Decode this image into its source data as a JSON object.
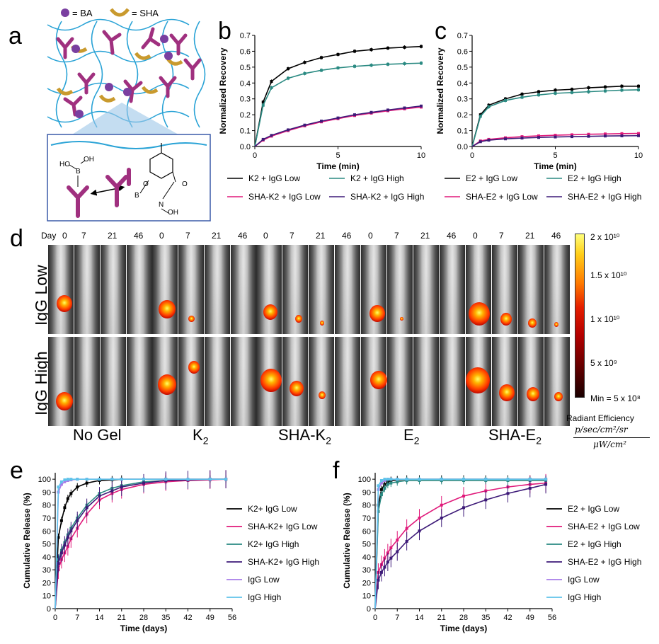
{
  "panel_labels": {
    "a": "a",
    "b": "b",
    "c": "c",
    "d": "d",
    "e": "e",
    "f": "f"
  },
  "panel_a": {
    "legend_ba": "= BA",
    "legend_sha": "= SHA",
    "chem": {
      "ho1": "HO",
      "oh1": "OH",
      "b1": "B",
      "o1": "O",
      "o2": "O",
      "b2": "B",
      "n": "N",
      "oh2": "OH",
      "o3": "O"
    }
  },
  "panel_b": {
    "ylabel": "Normalized Recovery",
    "xlabel": "Time (min)",
    "yticks": [
      "0.0",
      "0.1",
      "0.2",
      "0.3",
      "0.4",
      "0.5",
      "0.6",
      "0.7"
    ],
    "xticks": [
      "0",
      "5",
      "10"
    ],
    "legend": [
      "K2 + IgG Low",
      "K2 + IgG High",
      "SHA-K2 + IgG Low",
      "SHA-K2 + IgG High"
    ]
  },
  "panel_c": {
    "ylabel": "Normalized Recovery",
    "xlabel": "Time (min)",
    "yticks": [
      "0.0",
      "0.1",
      "0.2",
      "0.3",
      "0.4",
      "0.5",
      "0.6",
      "0.7"
    ],
    "xticks": [
      "0",
      "5",
      "10"
    ],
    "legend": [
      "E2 + IgG Low",
      "E2 + IgG High",
      "SHA-E2 + IgG Low",
      "SHA-E2 + IgG High"
    ]
  },
  "panel_d": {
    "day_prefix": "Day",
    "days": [
      "0",
      "7",
      "21",
      "46"
    ],
    "rows": [
      "IgG Low",
      "IgG High"
    ],
    "groups": [
      "No Gel",
      "K2",
      "SHA-K2",
      "E2",
      "SHA-E2"
    ],
    "colorbar": {
      "ticks": [
        "2 x 10¹⁰",
        "1.5 x 10¹⁰",
        "1 x 10¹⁰",
        "5 x 10⁹",
        "Min = 5 x 10⁸"
      ],
      "title": "Radiant Efficiency",
      "unit_num": "p/sec/cm²/sr",
      "unit_den": "μW/cm²"
    }
  },
  "panel_e": {
    "ylabel": "Cumulative Release (%)",
    "xlabel": "Time (days)",
    "yticks": [
      "0",
      "10",
      "20",
      "30",
      "40",
      "50",
      "60",
      "70",
      "80",
      "90",
      "100"
    ],
    "xticks": [
      "0",
      "7",
      "14",
      "21",
      "28",
      "35",
      "42",
      "49",
      "56"
    ],
    "legend": [
      "K2+ IgG Low",
      "SHA-K2+ IgG Low",
      "K2+ IgG High",
      "SHA-K2+ IgG High",
      "IgG Low",
      "IgG High"
    ]
  },
  "panel_f": {
    "ylabel": "Cumulative Release (%)",
    "xlabel": "Time (days)",
    "yticks": [
      "0",
      "10",
      "20",
      "30",
      "40",
      "50",
      "60",
      "70",
      "80",
      "90",
      "100"
    ],
    "xticks": [
      "0",
      "7",
      "14",
      "21",
      "28",
      "35",
      "42",
      "49",
      "56"
    ],
    "legend": [
      "E2 + IgG Low",
      "SHA-E2 + IgG Low",
      "E2 + IgG High",
      "SHA-E2 + IgG High",
      "IgG Low",
      "IgG High"
    ]
  },
  "colors": {
    "black": "#000000",
    "teal": "#2a8a82",
    "pink": "#e0197a",
    "purple": "#3d1a78",
    "lavender": "#a77be8",
    "lightblue": "#5fc3ea",
    "magenta": "#a0307f",
    "gold": "#c99a2e",
    "gelblue": "#2aa3d6"
  },
  "chart_data": [
    {
      "panel": "b",
      "type": "line",
      "xlabel": "Time (min)",
      "ylabel": "Normalized Recovery",
      "xlim": [
        0,
        10
      ],
      "ylim": [
        0,
        0.7
      ],
      "x": [
        0,
        0.5,
        1,
        2,
        3,
        4,
        5,
        6,
        7,
        8,
        9,
        10
      ],
      "series": [
        {
          "name": "K2 + IgG Low",
          "values": [
            0.0,
            0.28,
            0.41,
            0.49,
            0.53,
            0.56,
            0.58,
            0.6,
            0.61,
            0.62,
            0.625,
            0.63
          ]
        },
        {
          "name": "K2 + IgG High",
          "values": [
            0.0,
            0.26,
            0.37,
            0.43,
            0.46,
            0.48,
            0.495,
            0.505,
            0.512,
            0.518,
            0.522,
            0.525
          ]
        },
        {
          "name": "SHA-K2 + IgG Low",
          "values": [
            0.0,
            0.04,
            0.065,
            0.1,
            0.13,
            0.155,
            0.175,
            0.195,
            0.21,
            0.225,
            0.237,
            0.248
          ]
        },
        {
          "name": "SHA-K2 + IgG High",
          "values": [
            0.0,
            0.045,
            0.07,
            0.105,
            0.135,
            0.16,
            0.18,
            0.2,
            0.215,
            0.23,
            0.243,
            0.255
          ]
        }
      ]
    },
    {
      "panel": "c",
      "type": "line",
      "xlabel": "Time (min)",
      "ylabel": "Normalized Recovery",
      "xlim": [
        0,
        10
      ],
      "ylim": [
        0,
        0.7
      ],
      "x": [
        0,
        0.5,
        1,
        2,
        3,
        4,
        5,
        6,
        7,
        8,
        9,
        10
      ],
      "series": [
        {
          "name": "E2 + IgG Low",
          "values": [
            0.0,
            0.2,
            0.26,
            0.3,
            0.33,
            0.345,
            0.355,
            0.36,
            0.37,
            0.375,
            0.38,
            0.38
          ]
        },
        {
          "name": "E2 + IgG High",
          "values": [
            0.0,
            0.19,
            0.25,
            0.29,
            0.31,
            0.325,
            0.335,
            0.34,
            0.345,
            0.35,
            0.355,
            0.357
          ]
        },
        {
          "name": "SHA-E2 + IgG Low",
          "values": [
            0.0,
            0.035,
            0.045,
            0.055,
            0.062,
            0.067,
            0.071,
            0.074,
            0.077,
            0.079,
            0.081,
            0.082
          ]
        },
        {
          "name": "SHA-E2 + IgG High",
          "values": [
            0.0,
            0.03,
            0.04,
            0.048,
            0.053,
            0.057,
            0.06,
            0.062,
            0.064,
            0.066,
            0.067,
            0.068
          ]
        }
      ]
    },
    {
      "panel": "e",
      "type": "line",
      "xlabel": "Time (days)",
      "ylabel": "Cumulative Release (%)",
      "xlim": [
        0,
        56
      ],
      "ylim": [
        0,
        105
      ],
      "x": [
        0,
        1,
        2,
        3,
        4,
        5,
        7,
        10,
        14,
        18,
        21,
        28,
        35,
        42,
        49,
        54
      ],
      "series": [
        {
          "name": "K2+ IgG Low",
          "values": [
            0,
            55,
            68,
            78,
            85,
            89,
            94,
            97,
            99,
            99.5,
            100,
            100,
            100,
            100,
            100,
            100
          ]
        },
        {
          "name": "SHA-K2+ IgG Low",
          "values": [
            0,
            30,
            38,
            43,
            48,
            54,
            62,
            73,
            84,
            89,
            92,
            96,
            98,
            99,
            99.5,
            100
          ]
        },
        {
          "name": "K2+ IgG High",
          "values": [
            0,
            38,
            45,
            51,
            57,
            62,
            70,
            80,
            89,
            93,
            95,
            98,
            99,
            99.5,
            100,
            100
          ]
        },
        {
          "name": "SHA-K2+ IgG High",
          "values": [
            0,
            35,
            43,
            49,
            55,
            60,
            68,
            78,
            87,
            91,
            94,
            97,
            99,
            99.5,
            100,
            100
          ]
        },
        {
          "name": "IgG Low",
          "values": [
            0,
            90,
            96,
            98,
            99,
            99.5,
            100,
            100,
            100,
            100,
            100,
            100,
            100,
            100,
            100,
            100
          ]
        },
        {
          "name": "IgG High",
          "values": [
            0,
            94,
            98,
            99.5,
            100,
            100,
            100,
            100,
            100,
            100,
            100,
            100,
            100,
            100,
            100,
            100
          ]
        }
      ]
    },
    {
      "panel": "f",
      "type": "line",
      "xlabel": "Time (days)",
      "ylabel": "Cumulative Release (%)",
      "xlim": [
        0,
        56
      ],
      "ylim": [
        0,
        105
      ],
      "x": [
        0,
        1,
        2,
        3,
        4,
        5,
        7,
        10,
        14,
        21,
        28,
        35,
        42,
        49,
        54
      ],
      "series": [
        {
          "name": "E2 + IgG Low",
          "values": [
            0,
            80,
            92,
            96,
            98,
            99,
            99.5,
            100,
            100,
            100,
            100,
            100,
            100,
            100,
            100
          ]
        },
        {
          "name": "SHA-E2 + IgG Low",
          "values": [
            0,
            28,
            34,
            39,
            43,
            47,
            53,
            62,
            70,
            80,
            87,
            91,
            94,
            96,
            97
          ]
        },
        {
          "name": "E2 + IgG High",
          "values": [
            0,
            75,
            88,
            93,
            96,
            97,
            98,
            99,
            99,
            99,
            99,
            99,
            99,
            99,
            99
          ]
        },
        {
          "name": "SHA-E2 + IgG High",
          "values": [
            0,
            22,
            28,
            32,
            36,
            39,
            44,
            52,
            60,
            70,
            78,
            84,
            89,
            93,
            96
          ]
        },
        {
          "name": "IgG Low",
          "values": [
            0,
            92,
            97,
            99,
            100,
            100,
            100,
            100,
            100,
            100,
            100,
            100,
            100,
            100,
            100
          ]
        },
        {
          "name": "IgG High",
          "values": [
            0,
            95,
            99,
            100,
            100,
            100,
            100,
            100,
            100,
            100,
            100,
            100,
            100,
            100,
            100
          ]
        }
      ]
    }
  ]
}
